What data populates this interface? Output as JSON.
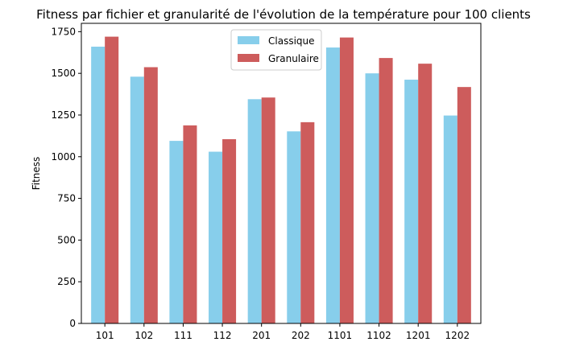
{
  "chart_data": {
    "type": "bar",
    "title": "Fitness par fichier et granularité de l'évolution de la température pour 100 clients",
    "xlabel": "",
    "ylabel": "Fitness",
    "categories": [
      "101",
      "102",
      "111",
      "112",
      "201",
      "202",
      "1101",
      "1102",
      "1201",
      "1202"
    ],
    "series": [
      {
        "name": "Classique",
        "color": "#87CEEB",
        "values": [
          1660,
          1480,
          1095,
          1030,
          1345,
          1152,
          1655,
          1500,
          1462,
          1247
        ]
      },
      {
        "name": "Granulaire",
        "color": "#CD5C5C",
        "values": [
          1720,
          1537,
          1188,
          1105,
          1355,
          1207,
          1715,
          1592,
          1558,
          1418
        ]
      }
    ],
    "ylim": [
      0,
      1800
    ],
    "yticks": [
      0,
      250,
      500,
      750,
      1000,
      1250,
      1500,
      1750
    ],
    "grid": false,
    "legend_position": "top-center"
  }
}
